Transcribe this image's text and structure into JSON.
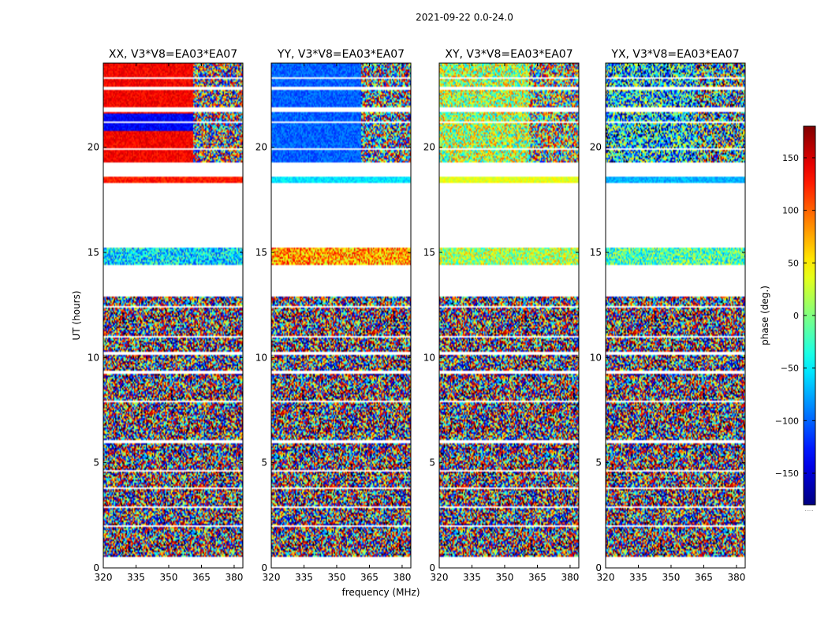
{
  "figure": {
    "title": "2021-09-22 0.0-24.0"
  },
  "chart_data": {
    "type": "heatmap",
    "title": "2021-09-22 0.0-24.0",
    "xlabel": "frequency (MHz)",
    "ylabel": "UT (hours)",
    "xlim": [
      320,
      384
    ],
    "ylim": [
      0,
      24
    ],
    "xticks": [
      320,
      335,
      350,
      365,
      380
    ],
    "yticks": [
      0,
      5,
      10,
      15,
      20
    ],
    "panels": [
      {
        "title": "XX, V3*V8=EA03*EA07"
      },
      {
        "title": "YY, V3*V8=EA03*EA07"
      },
      {
        "title": "XY, V3*V8=EA03*EA07"
      },
      {
        "title": "YX, V3*V8=EA03*EA07"
      }
    ],
    "colorbar": {
      "label": "phase (deg.)",
      "range": [
        -180,
        180
      ],
      "ticks": [
        -150,
        -100,
        -50,
        0,
        50,
        100,
        150
      ],
      "colormap": "jet",
      "under_label": "....."
    },
    "data_ranges_ut": [
      [
        0.5,
        12.9
      ],
      [
        14.4,
        15.2
      ],
      [
        18.3,
        18.6
      ],
      [
        19.3,
        21.7
      ],
      [
        21.9,
        24.0
      ]
    ]
  }
}
